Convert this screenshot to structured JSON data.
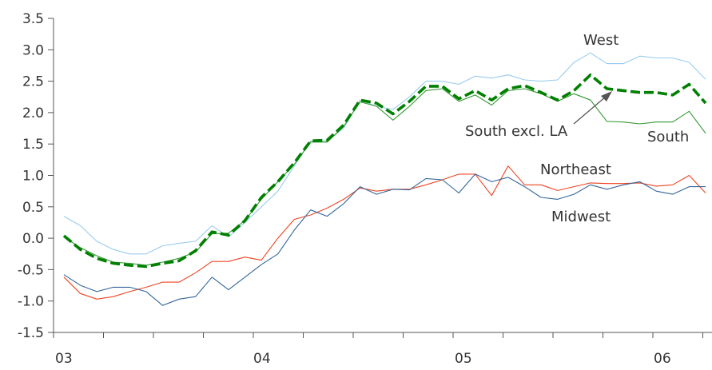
{
  "chart_data": {
    "type": "line",
    "title": "",
    "xlabel": "",
    "ylabel": "",
    "x_tick_labels": [
      "03",
      "04",
      "05",
      "06"
    ],
    "ylim": [
      -1.5,
      3.5
    ],
    "y_ticks": [
      "-1.5",
      "-1.0",
      "-0.5",
      "0.0",
      "0.5",
      "1.0",
      "1.5",
      "2.0",
      "2.5",
      "3.0",
      "3.5"
    ],
    "grid": false,
    "legend": "inline labels",
    "series": [
      {
        "name": "West",
        "color": "#99ccee",
        "style": "thin",
        "values": [
          0.35,
          0.2,
          -0.05,
          -0.18,
          -0.25,
          -0.25,
          -0.12,
          -0.08,
          -0.05,
          0.2,
          0.02,
          0.25,
          0.5,
          0.75,
          1.15,
          1.55,
          1.55,
          1.75,
          2.2,
          2.1,
          2.05,
          2.25,
          2.5,
          2.5,
          2.45,
          2.58,
          2.55,
          2.6,
          2.52,
          2.5,
          2.52,
          2.8,
          2.95,
          2.78,
          2.78,
          2.9,
          2.87,
          2.87,
          2.8,
          2.53
        ]
      },
      {
        "name": "South",
        "color": "#339933",
        "style": "thin",
        "values": [
          0.02,
          -0.15,
          -0.28,
          -0.38,
          -0.4,
          -0.43,
          -0.38,
          -0.32,
          -0.22,
          0.07,
          0.08,
          0.28,
          0.62,
          0.9,
          1.18,
          1.53,
          1.53,
          1.78,
          2.17,
          2.1,
          1.88,
          2.1,
          2.35,
          2.38,
          2.18,
          2.28,
          2.12,
          2.35,
          2.38,
          2.3,
          2.18,
          2.3,
          2.2,
          1.86,
          1.85,
          1.82,
          1.85,
          1.85,
          2.02,
          1.67
        ]
      },
      {
        "name": "South excl. LA",
        "color": "#008000",
        "style": "dashed",
        "values": [
          0.04,
          -0.18,
          -0.32,
          -0.4,
          -0.43,
          -0.45,
          -0.4,
          -0.36,
          -0.2,
          0.1,
          0.05,
          0.28,
          0.65,
          0.9,
          1.2,
          1.55,
          1.56,
          1.8,
          2.2,
          2.15,
          1.98,
          2.18,
          2.42,
          2.42,
          2.22,
          2.35,
          2.2,
          2.38,
          2.43,
          2.32,
          2.2,
          2.35,
          2.6,
          2.38,
          2.35,
          2.32,
          2.32,
          2.28,
          2.45,
          2.15
        ]
      },
      {
        "name": "Northeast",
        "color": "#ee4422",
        "style": "thin",
        "values": [
          -0.62,
          -0.88,
          -0.97,
          -0.93,
          -0.85,
          -0.78,
          -0.7,
          -0.7,
          -0.55,
          -0.37,
          -0.37,
          -0.3,
          -0.35,
          0.0,
          0.3,
          0.37,
          0.48,
          0.62,
          0.8,
          0.75,
          0.78,
          0.78,
          0.85,
          0.93,
          1.02,
          1.02,
          0.68,
          1.15,
          0.85,
          0.85,
          0.76,
          0.82,
          0.88,
          0.87,
          0.87,
          0.88,
          0.83,
          0.85,
          1.0,
          0.72
        ]
      },
      {
        "name": "Midwest",
        "color": "#336699",
        "style": "thin",
        "values": [
          -0.58,
          -0.75,
          -0.85,
          -0.78,
          -0.78,
          -0.85,
          -1.07,
          -0.97,
          -0.93,
          -0.62,
          -0.82,
          -0.62,
          -0.42,
          -0.25,
          0.13,
          0.45,
          0.35,
          0.55,
          0.82,
          0.7,
          0.78,
          0.77,
          0.95,
          0.93,
          0.72,
          1.02,
          0.9,
          0.97,
          0.82,
          0.65,
          0.62,
          0.7,
          0.85,
          0.78,
          0.85,
          0.9,
          0.75,
          0.7,
          0.82,
          0.82
        ]
      }
    ]
  }
}
